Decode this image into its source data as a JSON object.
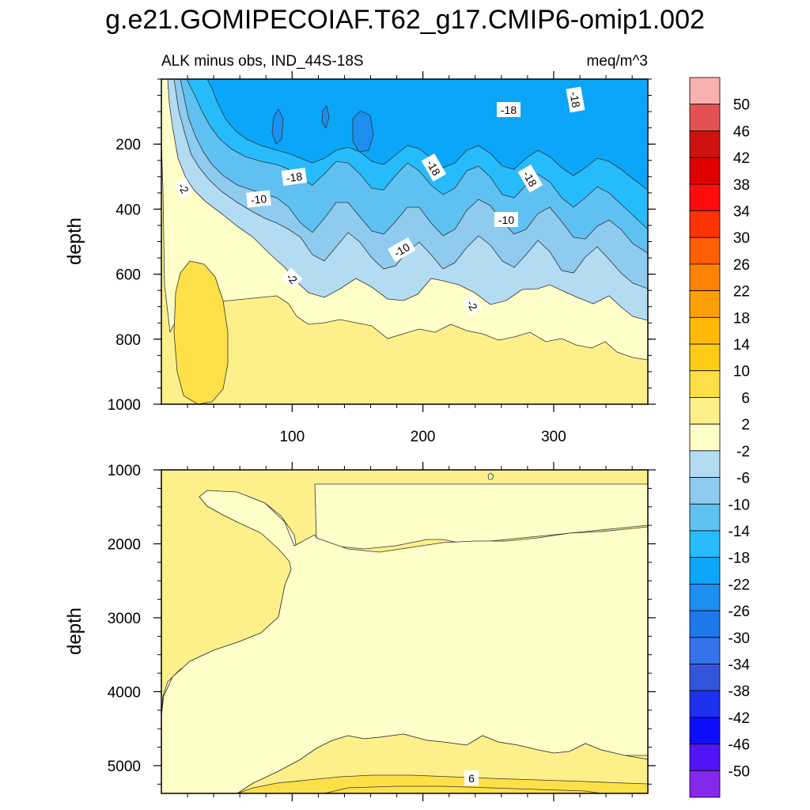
{
  "title": "g.e21.GOMIPECOIAF.T62_g17.CMIP6-omip1.002",
  "chart_data": [
    {
      "type": "contour",
      "panel": "upper",
      "subtitle_left": "ALK minus obs, IND_44S-18S",
      "subtitle_right": "meq/m^3",
      "ylabel": "depth",
      "xlabel": "",
      "xlim": [
        0,
        372
      ],
      "ylim": [
        1000,
        0
      ],
      "xticks": [
        100,
        200,
        300
      ],
      "yticks": [
        200,
        400,
        600,
        800,
        1000
      ],
      "contour_labels": [
        "-18",
        "-18",
        "-18",
        "-18",
        "-18",
        "-10",
        "-10",
        "-10",
        "-2",
        "-2",
        "-2"
      ],
      "fill_bands": [
        {
          "label": "2 to 6",
          "color": "#fdf08a"
        },
        {
          "label": "6 to 10",
          "color": "#fde047"
        },
        {
          "label": "-2 to 2",
          "color": "#fefec8"
        },
        {
          "label": "-6 to -2",
          "color": "#b3dcf3"
        },
        {
          "label": "-10 to -6",
          "color": "#8ecbee"
        },
        {
          "label": "-14 to -10",
          "color": "#5ec1f2"
        },
        {
          "label": "-18 to -14",
          "color": "#26bcfc"
        },
        {
          "label": "-22 to -18",
          "color": "#0ba6fa"
        },
        {
          "label": "-26 to -22",
          "color": "#1c8ff0"
        }
      ]
    },
    {
      "type": "contour",
      "panel": "lower",
      "ylabel": "depth",
      "xlim": [
        0,
        372
      ],
      "ylim": [
        5375,
        1000
      ],
      "xticks": [
        100,
        200,
        300
      ],
      "yticks": [
        1000,
        2000,
        3000,
        4000,
        5000
      ],
      "contour_labels": [
        "6"
      ],
      "fill_bands": [
        {
          "label": "2 to 6",
          "color": "#fdf08a"
        },
        {
          "label": "-2 to 2",
          "color": "#fefec8"
        },
        {
          "label": "6 to 10",
          "color": "#fde047"
        }
      ]
    }
  ],
  "colorbar": {
    "labels": [
      "50",
      "46",
      "42",
      "38",
      "34",
      "30",
      "26",
      "22",
      "18",
      "14",
      "10",
      "6",
      "2",
      "-2",
      "-6",
      "-10",
      "-14",
      "-18",
      "-22",
      "-26",
      "-30",
      "-34",
      "-38",
      "-42",
      "-46",
      "-50"
    ],
    "colors": [
      "#f9b0b0",
      "#e35252",
      "#ce1212",
      "#e00000",
      "#fe0c0c",
      "#ff3308",
      "#ff5e02",
      "#fe8203",
      "#ff9f08",
      "#ffb906",
      "#fecb17",
      "#fde047",
      "#fdf08a",
      "#fefec8",
      "#b3dcf3",
      "#8ecbee",
      "#5ec1f2",
      "#26bcfc",
      "#0ba6fa",
      "#1c8ff0",
      "#1d79ec",
      "#3473e9",
      "#3554dc",
      "#1e30f0",
      "#0e0efc",
      "#5214f6",
      "#8527ec"
    ]
  }
}
